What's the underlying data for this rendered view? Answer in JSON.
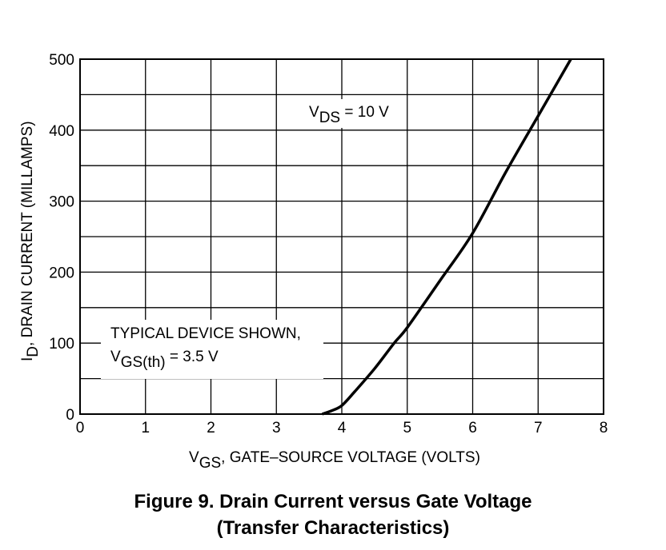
{
  "chart_data": {
    "type": "line",
    "title": "",
    "x_axis": {
      "label_main": "V",
      "label_sub": "GS",
      "label_rest": ", GATE–SOURCE VOLTAGE (VOLTS)",
      "range": [
        0,
        8
      ],
      "ticks": [
        "0",
        "1",
        "2",
        "3",
        "4",
        "5",
        "6",
        "7",
        "8"
      ]
    },
    "y_axis": {
      "label_main": "I",
      "label_sub": "D",
      "label_rest": ", DRAIN CURRENT (MILLAMPS)",
      "range": [
        0,
        500
      ],
      "ticks": [
        "0",
        "100",
        "200",
        "300",
        "400",
        "500"
      ]
    },
    "grid": true,
    "series": [
      {
        "x": [
          3.7,
          3.85,
          4.0,
          4.2,
          4.5,
          4.8,
          5.0,
          5.5,
          6.0,
          6.5,
          7.0,
          7.5
        ],
        "y": [
          0,
          5,
          12,
          32,
          64,
          100,
          122,
          188,
          255,
          340,
          420,
          500
        ]
      }
    ],
    "annotations": {
      "vds": {
        "main": "V",
        "sub": "DS",
        "rest": " = 10 V"
      },
      "device_line1": "TYPICAL DEVICE SHOWN,",
      "vgs_th": {
        "main": "V",
        "sub": "GS(th)",
        "rest": " = 3.5 V"
      }
    }
  },
  "caption": {
    "line1": "Figure 9. Drain Current versus Gate Voltage",
    "line2": "(Transfer Characteristics)"
  }
}
